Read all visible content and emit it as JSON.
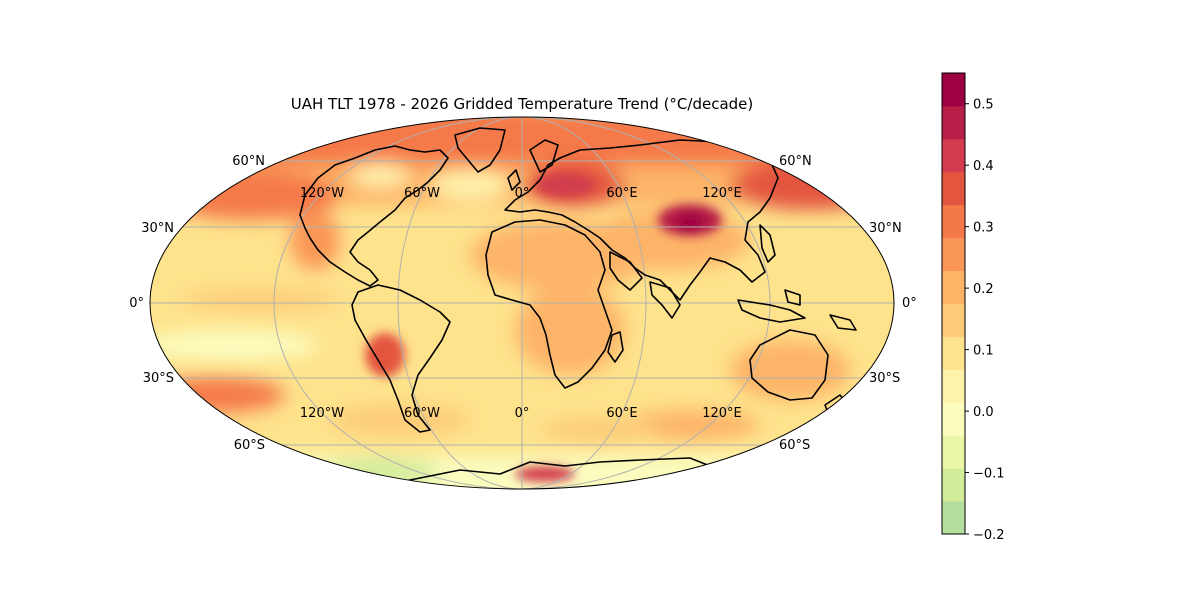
{
  "title": "UAH TLT 1978 - 2026 Gridded Temperature Trend (°C/decade)",
  "map": {
    "projection": "mollweide",
    "lat_labels_left": [
      "60°N",
      "30°N",
      "0°",
      "30°S",
      "60°S"
    ],
    "lat_labels_right": [
      "60°N",
      "30°N",
      "0°",
      "30°S",
      "60°S"
    ],
    "lon_labels_north": [
      "120°W",
      "60°W",
      "0°",
      "60°E",
      "120°E"
    ],
    "lon_labels_south": [
      "120°W",
      "60°W",
      "0°",
      "60°E",
      "120°E"
    ]
  },
  "colorbar": {
    "min": -0.2,
    "max": 0.55,
    "tick_labels": [
      "0.5",
      "0.4",
      "0.3",
      "0.2",
      "0.1",
      "0.0",
      "−0.1",
      "−0.2"
    ],
    "colors_low_to_high": [
      "#b4df9e",
      "#d1ec9b",
      "#ebf7a6",
      "#fbfdbf",
      "#fff2aa",
      "#fee38c",
      "#fdcb78",
      "#fdb467",
      "#fa9656",
      "#f57948",
      "#e4553f",
      "#d23c4e",
      "#b81f48",
      "#9e0142"
    ]
  },
  "features": {
    "hot_north_pacific": "Warm band along Arctic and North Pacific",
    "hotspot_mongolia": "Strongest warming over Mongolia / East Asia",
    "cool_south_pacific": "Weak warming in South Pacific",
    "cool_southern_ocean": "Slight cooling near Antarctic coast"
  }
}
